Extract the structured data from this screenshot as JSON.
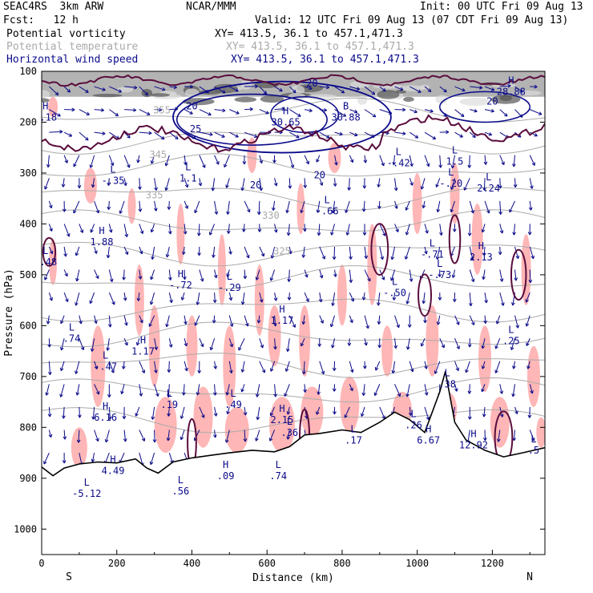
{
  "header": {
    "model": "SEAC4RS  3km ARW",
    "org": "NCAR/MMM",
    "init": "Init: 00 UTC Fri 09 Aug 13",
    "fcst": "Fcst:   12 h",
    "valid": "Valid: 12 UTC Fri 09 Aug 13 (07 CDT Fri 09 Aug 13)"
  },
  "fields": [
    {
      "name": "Potential vorticity",
      "xy": "XY= 413.5, 36.1 to 457.1,471.3",
      "color": "#000000"
    },
    {
      "name": "Potential temperature",
      "xy": "XY= 413.5, 36.1 to 457.1,471.3",
      "color": "#aaaaaa"
    },
    {
      "name": "Horizontal wind speed",
      "xy": "XY= 413.5, 36.1 to 457.1,471.3",
      "color": "#0a0a8a"
    }
  ],
  "chart_data": {
    "type": "cross-section",
    "xlabel": "Distance (km)",
    "ylabel": "Pressure (hPa)",
    "xlim": [
      0,
      1340
    ],
    "ylim": [
      100,
      1050
    ],
    "y_inverted": true,
    "x_ticks": [
      0,
      200,
      400,
      600,
      800,
      1000,
      1200
    ],
    "y_ticks": [
      100,
      200,
      300,
      400,
      500,
      600,
      700,
      800,
      900,
      1000
    ],
    "end_labels": {
      "left": "S",
      "right": "N"
    },
    "terrain_hpa": [
      [
        0,
        878
      ],
      [
        30,
        895
      ],
      [
        60,
        880
      ],
      [
        100,
        872
      ],
      [
        150,
        868
      ],
      [
        200,
        870
      ],
      [
        250,
        862
      ],
      [
        280,
        880
      ],
      [
        310,
        890
      ],
      [
        350,
        868
      ],
      [
        400,
        860
      ],
      [
        450,
        855
      ],
      [
        500,
        850
      ],
      [
        560,
        845
      ],
      [
        620,
        848
      ],
      [
        660,
        838
      ],
      [
        700,
        815
      ],
      [
        740,
        812
      ],
      [
        800,
        805
      ],
      [
        850,
        810
      ],
      [
        900,
        790
      ],
      [
        940,
        770
      ],
      [
        980,
        785
      ],
      [
        1020,
        810
      ],
      [
        1060,
        730
      ],
      [
        1075,
        690
      ],
      [
        1100,
        790
      ],
      [
        1130,
        825
      ],
      [
        1180,
        845
      ],
      [
        1230,
        858
      ],
      [
        1280,
        850
      ],
      [
        1340,
        840
      ]
    ],
    "theta_contours": [
      {
        "label": "355",
        "x": 320,
        "p": 183
      },
      {
        "label": "345",
        "x": 310,
        "p": 270
      },
      {
        "label": "335",
        "x": 300,
        "p": 350
      },
      {
        "label": "330",
        "x": 610,
        "p": 390
      },
      {
        "label": "325",
        "x": 640,
        "p": 460
      }
    ],
    "wind_speed_contours": [
      {
        "label": "20",
        "x": 400,
        "p": 175
      },
      {
        "label": "25",
        "x": 410,
        "p": 220
      },
      {
        "label": "20",
        "x": 570,
        "p": 330
      },
      {
        "label": "20",
        "x": 740,
        "p": 310
      },
      {
        "label": "20",
        "x": 720,
        "p": 130
      },
      {
        "label": "20",
        "x": 1200,
        "p": 165
      }
    ],
    "extrema": [
      {
        "type": "H",
        "value": "1.18",
        "x": 10,
        "p": 195
      },
      {
        "type": "L",
        "value": "-.35",
        "x": 190,
        "p": 320
      },
      {
        "type": "L",
        "value": "1.1",
        "x": 390,
        "p": 315
      },
      {
        "type": "H",
        "value": "30.65",
        "x": 650,
        "p": 205
      },
      {
        "type": "B",
        "value": "30.88",
        "x": 810,
        "p": 195
      },
      {
        "type": "H",
        "value": "28.88",
        "x": 1250,
        "p": 145
      },
      {
        "type": "L",
        "value": "-.48",
        "x": 10,
        "p": 480
      },
      {
        "type": "H",
        "value": "1.88",
        "x": 160,
        "p": 440
      },
      {
        "type": "H",
        "value": "-.72",
        "x": 370,
        "p": 525
      },
      {
        "type": "L",
        "value": "-.29",
        "x": 500,
        "p": 530
      },
      {
        "type": "H",
        "value": "1.17",
        "x": 640,
        "p": 595
      },
      {
        "type": "L",
        "value": "-.66",
        "x": 760,
        "p": 380
      },
      {
        "type": "L",
        "value": "-.42",
        "x": 950,
        "p": 285
      },
      {
        "type": "L",
        "value": "1.5",
        "x": 1100,
        "p": 282
      },
      {
        "type": "L",
        "value": "-.20",
        "x": 1090,
        "p": 325
      },
      {
        "type": "L",
        "value": "2.24",
        "x": 1190,
        "p": 335
      },
      {
        "type": "L",
        "value": "-.71",
        "x": 1040,
        "p": 465
      },
      {
        "type": "H",
        "value": "2.13",
        "x": 1170,
        "p": 470
      },
      {
        "type": "L",
        "value": "-.73",
        "x": 1060,
        "p": 505
      },
      {
        "type": "L",
        "value": "-.50",
        "x": 940,
        "p": 540
      },
      {
        "type": "L",
        "value": ".74",
        "x": 80,
        "p": 630
      },
      {
        "type": "L",
        "value": "-.47",
        "x": 170,
        "p": 685
      },
      {
        "type": "H",
        "value": "1.17",
        "x": 270,
        "p": 655
      },
      {
        "type": "L",
        "value": ".25",
        "x": 1250,
        "p": 635
      },
      {
        "type": "L",
        "value": ".38",
        "x": 1080,
        "p": 720
      },
      {
        "type": "H",
        "value": "6.16",
        "x": 170,
        "p": 785
      },
      {
        "type": "L",
        "value": ".19",
        "x": 340,
        "p": 760
      },
      {
        "type": "L",
        "value": ".49",
        "x": 510,
        "p": 760
      },
      {
        "type": "H",
        "value": "2.15",
        "x": 640,
        "p": 790
      },
      {
        "type": "L",
        "value": ".36",
        "x": 660,
        "p": 815
      },
      {
        "type": "L",
        "value": ".17",
        "x": 830,
        "p": 830
      },
      {
        "type": "L",
        "value": ".26",
        "x": 990,
        "p": 800
      },
      {
        "type": "H",
        "value": "6.67",
        "x": 1030,
        "p": 830
      },
      {
        "type": "H",
        "value": "12.92",
        "x": 1150,
        "p": 840
      },
      {
        "type": "L",
        "value": ".5",
        "x": 1310,
        "p": 850
      },
      {
        "type": "H",
        "value": "4.49",
        "x": 190,
        "p": 890
      },
      {
        "type": "L",
        "value": "-5.12",
        "x": 120,
        "p": 935
      },
      {
        "type": "L",
        "value": ".56",
        "x": 370,
        "p": 930
      },
      {
        "type": "H",
        "value": ".09",
        "x": 490,
        "p": 900
      },
      {
        "type": "L",
        "value": ".74",
        "x": 630,
        "p": 900
      }
    ],
    "colors": {
      "pv_line": "#5a0d3d",
      "pv_fill": "#ffb6b6",
      "theta": "#aaaaaa",
      "wind": "#0a0a8a",
      "terrain": "#000000",
      "high_pv": "#444444"
    }
  }
}
